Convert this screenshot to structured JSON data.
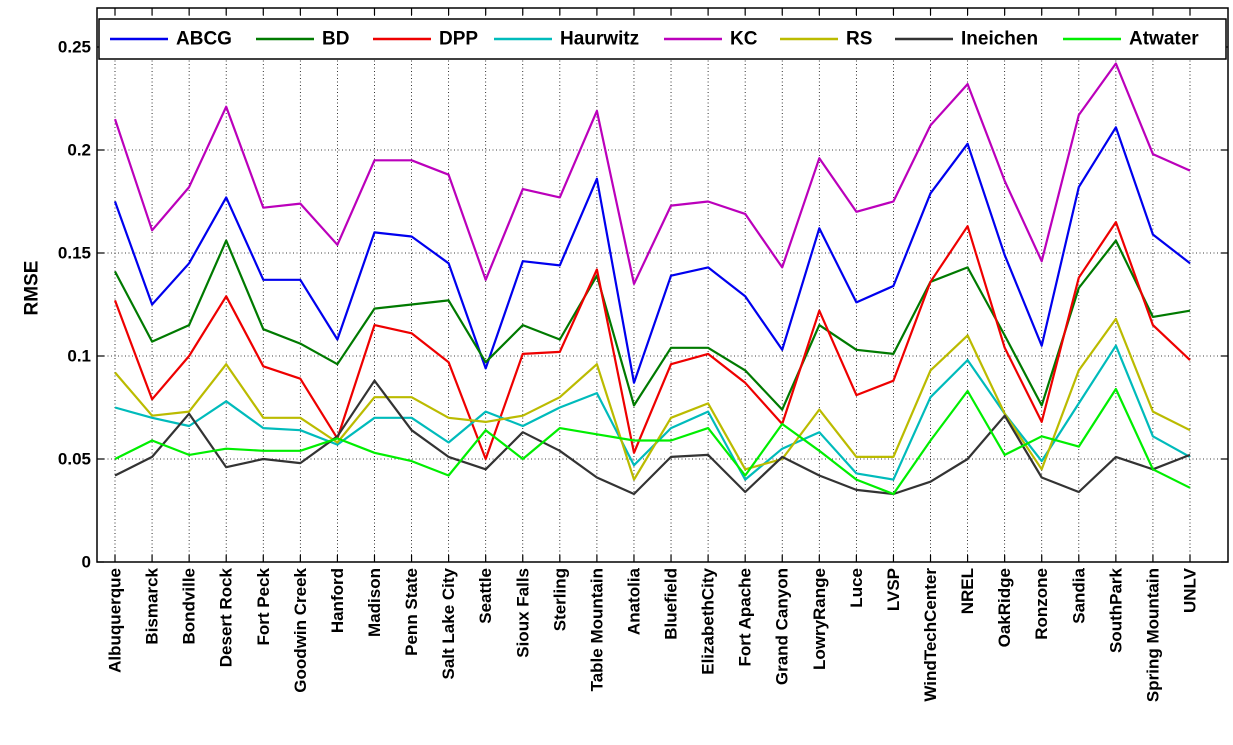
{
  "chart_data": {
    "type": "line",
    "title": "",
    "xlabel": "",
    "ylabel": "RMSE",
    "ylim": [
      0,
      0.25
    ],
    "yticks": [
      0,
      0.05,
      0.1,
      0.15,
      0.2,
      0.25
    ],
    "ytick_labels": [
      "0",
      "0.05",
      "0.1",
      "0.15",
      "0.2",
      "0.25"
    ],
    "grid": true,
    "legend_position": "top",
    "categories": [
      "Albuquerque",
      "Bismarck",
      "Bondville",
      "Desert Rock",
      "Fort Peck",
      "Goodwin Creek",
      "Hanford",
      "Madison",
      "Penn State",
      "Salt Lake City",
      "Seattle",
      "Sioux Falls",
      "Sterling",
      "Table Mountain",
      "Anatolia",
      "Bluefield",
      "ElizabethCity",
      "Fort Apache",
      "Grand Canyon",
      "LowryRange",
      "Luce",
      "LVSP",
      "WindTechCenter",
      "NREL",
      "OakRidge",
      "Ronzone",
      "Sandia",
      "SouthPark",
      "Spring Mountain",
      "UNLV"
    ],
    "series": [
      {
        "name": "ABCG",
        "color": "#0000ee",
        "values": [
          0.175,
          0.125,
          0.145,
          0.177,
          0.137,
          0.137,
          0.108,
          0.16,
          0.158,
          0.145,
          0.094,
          0.146,
          0.144,
          0.186,
          0.087,
          0.139,
          0.143,
          0.129,
          0.103,
          0.162,
          0.126,
          0.134,
          0.179,
          0.203,
          0.149,
          0.105,
          0.182,
          0.211,
          0.159,
          0.145
        ]
      },
      {
        "name": "BD",
        "color": "#007a00",
        "values": [
          0.141,
          0.107,
          0.115,
          0.156,
          0.113,
          0.106,
          0.096,
          0.123,
          0.125,
          0.127,
          0.097,
          0.115,
          0.108,
          0.139,
          0.076,
          0.104,
          0.104,
          0.093,
          0.074,
          0.115,
          0.103,
          0.101,
          0.136,
          0.143,
          0.11,
          0.076,
          0.133,
          0.156,
          0.119,
          0.122
        ]
      },
      {
        "name": "DPP",
        "color": "#ee0000",
        "values": [
          0.127,
          0.079,
          0.1,
          0.129,
          0.095,
          0.089,
          0.06,
          0.115,
          0.111,
          0.097,
          0.05,
          0.101,
          0.102,
          0.142,
          0.053,
          0.096,
          0.101,
          0.087,
          0.067,
          0.122,
          0.081,
          0.088,
          0.136,
          0.163,
          0.104,
          0.068,
          0.138,
          0.165,
          0.115,
          0.098
        ]
      },
      {
        "name": "Haurwitz",
        "color": "#00bbbb",
        "values": [
          0.075,
          0.07,
          0.066,
          0.078,
          0.065,
          0.064,
          0.057,
          0.07,
          0.07,
          0.058,
          0.073,
          0.066,
          0.075,
          0.082,
          0.047,
          0.065,
          0.073,
          0.04,
          0.055,
          0.063,
          0.043,
          0.04,
          0.08,
          0.098,
          0.072,
          0.049,
          0.077,
          0.105,
          0.061,
          0.051
        ]
      },
      {
        "name": "KC",
        "color": "#bb00bb",
        "values": [
          0.215,
          0.161,
          0.182,
          0.221,
          0.172,
          0.174,
          0.154,
          0.195,
          0.195,
          0.188,
          0.137,
          0.181,
          0.177,
          0.219,
          0.135,
          0.173,
          0.175,
          0.169,
          0.143,
          0.196,
          0.17,
          0.175,
          0.212,
          0.232,
          0.185,
          0.146,
          0.217,
          0.242,
          0.198,
          0.19
        ]
      },
      {
        "name": "RS",
        "color": "#bbbb00",
        "values": [
          0.092,
          0.071,
          0.073,
          0.096,
          0.07,
          0.07,
          0.058,
          0.08,
          0.08,
          0.07,
          0.068,
          0.071,
          0.08,
          0.096,
          0.04,
          0.07,
          0.077,
          0.045,
          0.05,
          0.074,
          0.051,
          0.051,
          0.093,
          0.11,
          0.072,
          0.045,
          0.093,
          0.118,
          0.073,
          0.064
        ]
      },
      {
        "name": "Ineichen",
        "color": "#333333",
        "values": [
          0.042,
          0.051,
          0.072,
          0.046,
          0.05,
          0.048,
          0.061,
          0.088,
          0.064,
          0.051,
          0.045,
          0.063,
          0.054,
          0.041,
          0.033,
          0.051,
          0.052,
          0.034,
          0.051,
          0.042,
          0.035,
          0.033,
          0.039,
          0.05,
          0.071,
          0.041,
          0.034,
          0.051,
          0.045,
          0.052
        ]
      },
      {
        "name": "Atwater",
        "color": "#00ee00",
        "values": [
          0.05,
          0.059,
          0.052,
          0.055,
          0.054,
          0.054,
          0.06,
          0.053,
          0.049,
          0.042,
          0.064,
          0.05,
          0.065,
          0.062,
          0.059,
          0.059,
          0.065,
          0.042,
          0.067,
          0.054,
          0.04,
          0.033,
          0.059,
          0.083,
          0.052,
          0.061,
          0.056,
          0.084,
          0.045,
          0.036
        ]
      }
    ]
  }
}
